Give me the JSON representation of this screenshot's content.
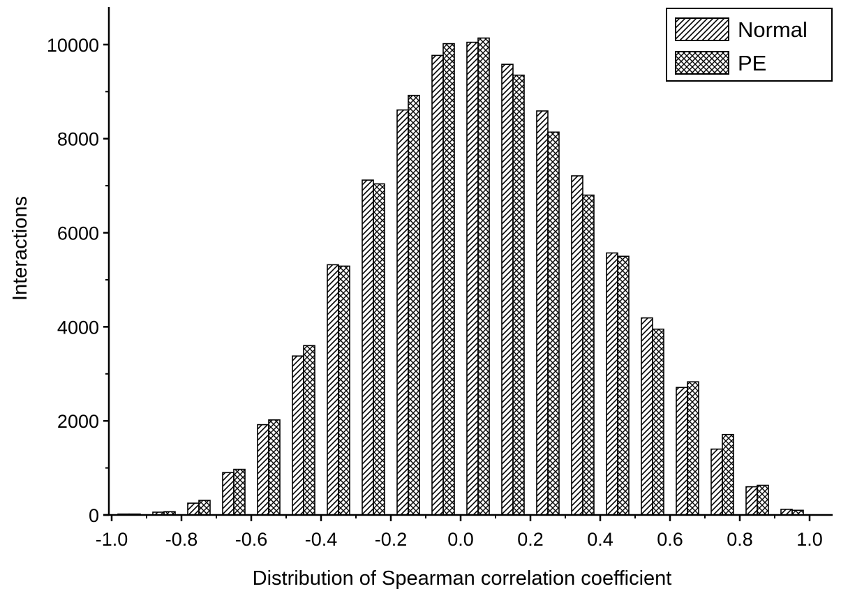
{
  "chart_data": {
    "type": "bar",
    "xlabel": "Distribution of Spearman correlation coefficient",
    "ylabel": "Interactions",
    "xlim": [
      -1.0,
      1.05
    ],
    "ylim": [
      0,
      10800
    ],
    "x_ticks": [
      "-1.0",
      "-0.8",
      "-0.6",
      "-0.4",
      "-0.2",
      "0.0",
      "0.2",
      "0.4",
      "0.6",
      "0.8",
      "1.0"
    ],
    "y_ticks": [
      "0",
      "2000",
      "4000",
      "6000",
      "8000",
      "10000"
    ],
    "bin_centers": [
      -0.95,
      -0.85,
      -0.75,
      -0.65,
      -0.55,
      -0.45,
      -0.35,
      -0.25,
      -0.15,
      -0.05,
      0.05,
      0.15,
      0.25,
      0.35,
      0.45,
      0.55,
      0.65,
      0.75,
      0.85,
      0.95
    ],
    "series": [
      {
        "name": "Normal",
        "pattern": "diagonal-hatch",
        "values": [
          20,
          60,
          250,
          900,
          1920,
          3380,
          5320,
          7120,
          8610,
          9770,
          10050,
          9580,
          8590,
          7210,
          5570,
          4190,
          2710,
          1400,
          600,
          120
        ]
      },
      {
        "name": "PE",
        "pattern": "cross-hatch",
        "values": [
          20,
          70,
          310,
          970,
          2020,
          3600,
          5290,
          7040,
          8920,
          10020,
          10140,
          9350,
          8140,
          6800,
          5500,
          3950,
          2830,
          1710,
          630,
          100
        ]
      }
    ],
    "legend_position": "top-right",
    "grid": false
  }
}
